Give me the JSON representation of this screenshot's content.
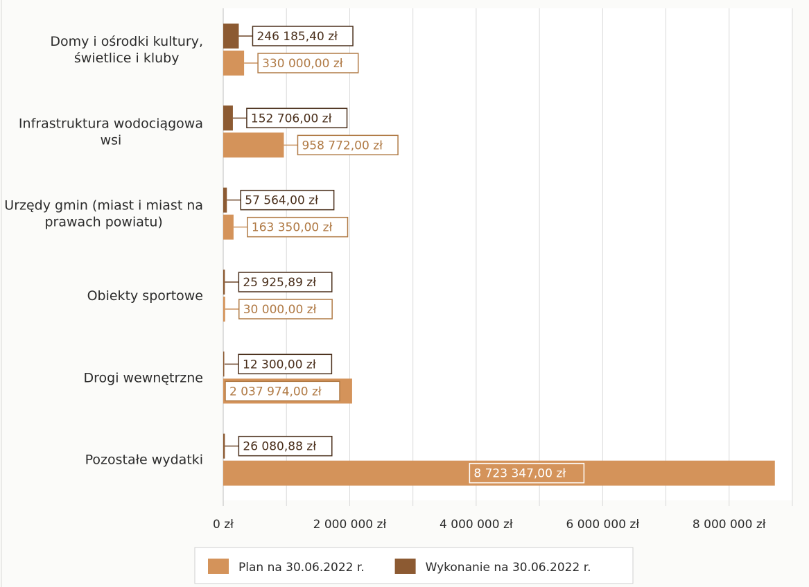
{
  "chart_data": {
    "type": "bar",
    "orientation": "horizontal",
    "categories": [
      "Domy i ośrodki kultury,\nświetlice i kluby",
      "Infrastruktura wodociągowa\nwsi",
      "Urzędy gmin (miast i miast na\nprawach powiatu)",
      "Obiekty sportowe",
      "Drogi wewnętrzne",
      "Pozostałe wydatki"
    ],
    "series": [
      {
        "name": "Wykonanie na 30.06.2022 r.",
        "color": "#8c5a32",
        "values": [
          246185.4,
          152706.0,
          57564.0,
          25925.89,
          12300.0,
          26080.88
        ],
        "labels": [
          "246 185,40 zł",
          "152 706,00 zł",
          "57 564,00 zł",
          "25 925,89 zł",
          "12 300,00 zł",
          "26 080,88 zł"
        ]
      },
      {
        "name": "Plan na 30.06.2022 r.",
        "color": "#d4935a",
        "values": [
          330000.0,
          958772.0,
          163350.0,
          30000.0,
          2037974.0,
          8723347.0
        ],
        "labels": [
          "330 000,00 zł",
          "958 772,00 zł",
          "163 350,00 zł",
          "30 000,00 zł",
          "2 037 974,00 zł",
          "8 723 347,00 zł"
        ]
      }
    ],
    "xlim": [
      0,
      9000000
    ],
    "xticks": [
      0,
      2000000,
      4000000,
      6000000,
      8000000
    ],
    "xtick_labels": [
      "0 zł",
      "2 000 000 zł",
      "4 000 000 zł",
      "6 000 000 zł",
      "8 000 000 zł"
    ],
    "grid": true,
    "legend": {
      "position": "bottom",
      "order": [
        "Plan na 30.06.2022 r.",
        "Wykonanie na 30.06.2022 r."
      ]
    },
    "title": "",
    "xlabel": "",
    "ylabel": ""
  }
}
